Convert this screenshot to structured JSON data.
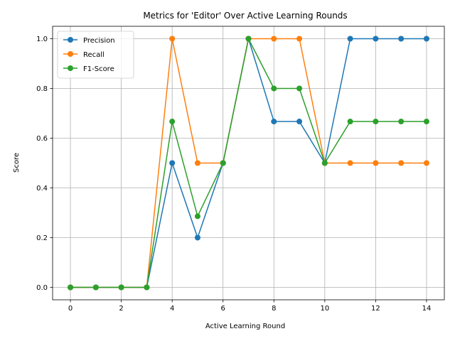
{
  "chart_data": {
    "type": "line",
    "title": "Metrics for 'Editor' Over Active Learning Rounds",
    "xlabel": "Active Learning Round",
    "ylabel": "Score",
    "x": [
      0,
      1,
      2,
      3,
      4,
      5,
      6,
      7,
      8,
      9,
      10,
      11,
      12,
      13,
      14
    ],
    "xlim": [
      -0.7,
      14.7
    ],
    "ylim": [
      -0.05,
      1.05
    ],
    "xticks": [
      0,
      2,
      4,
      6,
      8,
      10,
      12,
      14
    ],
    "yticks": [
      0.0,
      0.2,
      0.4,
      0.6,
      0.8,
      1.0
    ],
    "xtick_labels": [
      "0",
      "2",
      "4",
      "6",
      "8",
      "10",
      "12",
      "14"
    ],
    "ytick_labels": [
      "0.0",
      "0.2",
      "0.4",
      "0.6",
      "0.8",
      "1.0"
    ],
    "grid": true,
    "legend_position": "top-left",
    "series": [
      {
        "name": "Precision",
        "color": "#1f77b4",
        "values": [
          0,
          0,
          0,
          0,
          0.5,
          0.2,
          0.5,
          1.0,
          0.667,
          0.667,
          0.5,
          1.0,
          1.0,
          1.0,
          1.0
        ]
      },
      {
        "name": "Recall",
        "color": "#ff7f0e",
        "values": [
          0,
          0,
          0,
          0,
          1.0,
          0.5,
          0.5,
          1.0,
          1.0,
          1.0,
          0.5,
          0.5,
          0.5,
          0.5,
          0.5
        ]
      },
      {
        "name": "F1-Score",
        "color": "#2ca02c",
        "values": [
          0,
          0,
          0,
          0,
          0.667,
          0.286,
          0.5,
          1.0,
          0.8,
          0.8,
          0.5,
          0.667,
          0.667,
          0.667,
          0.667
        ]
      }
    ]
  }
}
